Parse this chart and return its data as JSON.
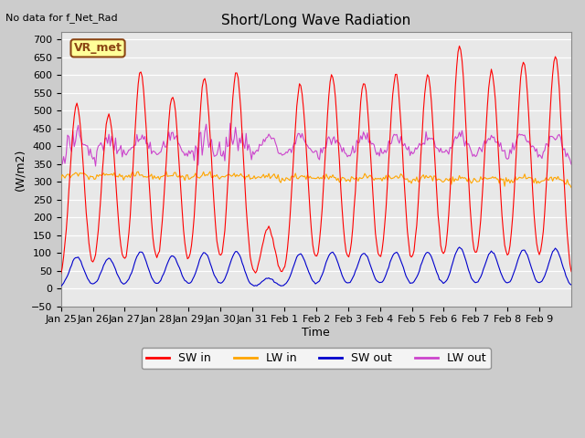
{
  "title": "Short/Long Wave Radiation",
  "subtitle": "No data for f_Net_Rad",
  "ylabel": "(W/m2)",
  "xlabel": "Time",
  "ylim": [
    -50,
    720
  ],
  "yticks": [
    -50,
    0,
    50,
    100,
    150,
    200,
    250,
    300,
    350,
    400,
    450,
    500,
    550,
    600,
    650,
    700
  ],
  "fig_bg": "#cccccc",
  "plot_bg": "#e8e8e8",
  "legend_label": "VR_met",
  "series_colors": {
    "SW_in": "#ff0000",
    "LW_in": "#ffa500",
    "SW_out": "#0000cc",
    "LW_out": "#cc44cc"
  },
  "tick_labels": [
    "Jan 25",
    "Jan 26",
    "Jan 27",
    "Jan 28",
    "Jan 29",
    "Jan 30",
    "Jan 31",
    "Feb 1",
    "Feb 2",
    "Feb 3",
    "Feb 4",
    "Feb 5",
    "Feb 6",
    "Feb 7",
    "Feb 8",
    "Feb 9"
  ],
  "legend_entries": [
    {
      "label": "SW in",
      "color": "#ff0000"
    },
    {
      "label": "LW in",
      "color": "#ffa500"
    },
    {
      "label": "SW out",
      "color": "#0000cc"
    },
    {
      "label": "LW out",
      "color": "#cc44cc"
    }
  ]
}
